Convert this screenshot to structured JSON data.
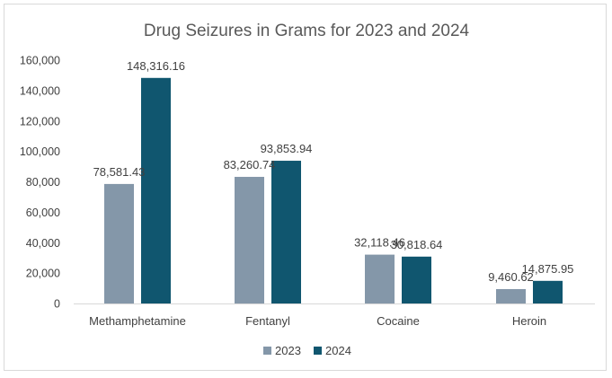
{
  "chart_data": {
    "type": "bar",
    "title": "Drug Seizures in Grams for 2023 and 2024",
    "xlabel": "",
    "ylabel": "",
    "categories": [
      "Methamphetamine",
      "Fentanyl",
      "Cocaine",
      "Heroin"
    ],
    "series": [
      {
        "name": "2023",
        "color": "#8497a9",
        "values": [
          78581.43,
          83260.74,
          32118.46,
          9460.62
        ],
        "labels": [
          "78,581.43",
          "83,260.74",
          "32,118.46",
          "9,460.62"
        ]
      },
      {
        "name": "2024",
        "color": "#10566f",
        "values": [
          148316.16,
          93853.94,
          30818.64,
          14875.95
        ],
        "labels": [
          "148,316.16",
          "93,853.94",
          "30,818.64",
          "14,875.95"
        ]
      }
    ],
    "ylim": [
      0,
      160000
    ],
    "yticks": [
      0,
      20000,
      40000,
      60000,
      80000,
      100000,
      120000,
      140000,
      160000
    ],
    "ytick_labels": [
      "0",
      "20,000",
      "40,000",
      "60,000",
      "80,000",
      "100,000",
      "120,000",
      "140,000",
      "160,000"
    ],
    "grid": false,
    "legend_position": "bottom"
  }
}
